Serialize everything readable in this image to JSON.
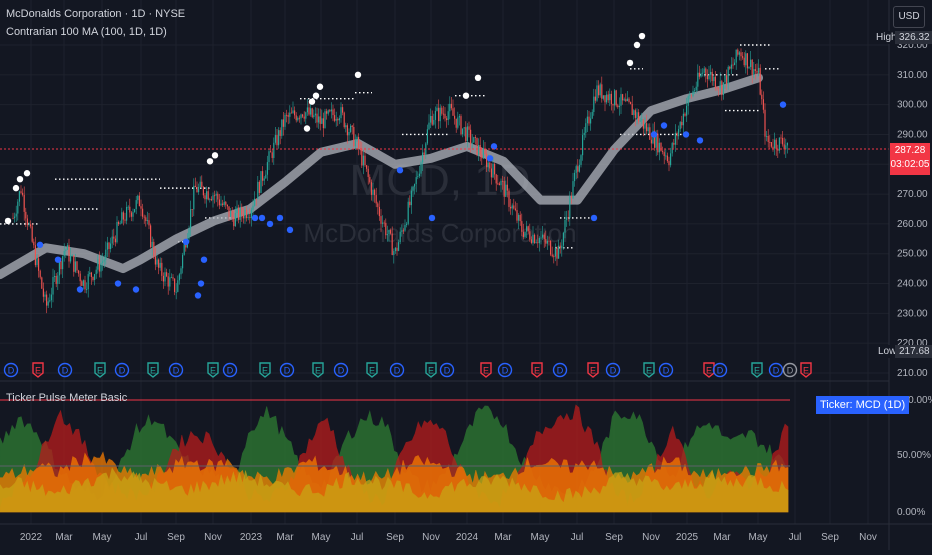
{
  "header": {
    "symbol_line": "McDonalds Corporation · 1D · NYSE",
    "indicator1": "Contrarian 100 MA (100, 1D, 1D)",
    "indicator2": "Ticker Pulse Meter Basic",
    "currency": "USD",
    "watermark_symbol": "MCD, 1D",
    "watermark_name": "McDonalds Corporation"
  },
  "tags": {
    "high_label": "High",
    "high_value": "326.32",
    "low_label": "Low",
    "low_value": "217.68",
    "last_price": "287.28",
    "countdown": "03:02:05",
    "ticker_badge": "Ticker: MCD (1D)"
  },
  "colors": {
    "background": "#131722",
    "grid": "#1e222d",
    "up": "#26a69a",
    "down": "#ef5350",
    "ma_band": "#b2b5be",
    "white_dot": "#ffffff",
    "blue_dot": "#2962ff",
    "price_line": "#f23645",
    "osc_green": "#2e7d32",
    "osc_red": "#b71c1c",
    "osc_orange": "#f57c00",
    "osc_yellow": "#c8a415",
    "badge": "#2962ff"
  },
  "chart_data": [
    {
      "type": "candlestick",
      "title": "McDonalds Corporation · 1D · NYSE",
      "x_ticks": [
        "2022",
        "Mar",
        "May",
        "Jul",
        "Sep",
        "Nov",
        "2023",
        "Mar",
        "May",
        "Jul",
        "Sep",
        "Nov",
        "2024",
        "Mar",
        "May",
        "Jul",
        "Sep",
        "Nov",
        "2025",
        "Mar",
        "May",
        "Jul",
        "Sep",
        "Nov"
      ],
      "y_ticks": [
        210,
        220,
        230,
        240,
        250,
        260,
        270,
        280,
        290,
        300,
        310,
        320
      ],
      "ylim": [
        207,
        330
      ],
      "price_path": [
        [
          "2022-01",
          262
        ],
        [
          "2022-01",
          272
        ],
        [
          "2022-02",
          258
        ],
        [
          "2022-03",
          232
        ],
        [
          "2022-04",
          252
        ],
        [
          "2022-05",
          240
        ],
        [
          "2022-06",
          248
        ],
        [
          "2022-07",
          262
        ],
        [
          "2022-08",
          268
        ],
        [
          "2022-09",
          245
        ],
        [
          "2022-10",
          238
        ],
        [
          "2022-11",
          272
        ],
        [
          "2022-12",
          270
        ],
        [
          "2023-01",
          262
        ],
        [
          "2023-02",
          265
        ],
        [
          "2023-03",
          280
        ],
        [
          "2023-04",
          295
        ],
        [
          "2023-05",
          298
        ],
        [
          "2023-06",
          294
        ],
        [
          "2023-07",
          298
        ],
        [
          "2023-08",
          286
        ],
        [
          "2023-09",
          266
        ],
        [
          "2023-10",
          250
        ],
        [
          "2023-11",
          270
        ],
        [
          "2023-12",
          296
        ],
        [
          "2024-01",
          298
        ],
        [
          "2024-02",
          290
        ],
        [
          "2024-03",
          282
        ],
        [
          "2024-04",
          272
        ],
        [
          "2024-05",
          258
        ],
        [
          "2024-06",
          255
        ],
        [
          "2024-07",
          250
        ],
        [
          "2024-08",
          280
        ],
        [
          "2024-09",
          305
        ],
        [
          "2024-10",
          302
        ],
        [
          "2024-11",
          298
        ],
        [
          "2025-01",
          282
        ],
        [
          "2025-02",
          300
        ],
        [
          "2025-03",
          312
        ],
        [
          "2025-04",
          306
        ],
        [
          "2025-05",
          318
        ],
        [
          "2025-06",
          310
        ],
        [
          "2025-06",
          287.28
        ]
      ],
      "ma_100": [
        [
          "2022-01",
          243
        ],
        [
          "2022-03",
          252
        ],
        [
          "2022-05",
          250
        ],
        [
          "2022-07",
          245
        ],
        [
          "2022-08",
          248
        ],
        [
          "2022-10",
          255
        ],
        [
          "2022-12",
          261
        ],
        [
          "2023-02",
          265
        ],
        [
          "2023-04",
          274
        ],
        [
          "2023-06",
          284
        ],
        [
          "2023-08",
          287
        ],
        [
          "2023-10",
          280
        ],
        [
          "2023-12",
          282
        ],
        [
          "2024-02",
          286
        ],
        [
          "2024-04",
          281
        ],
        [
          "2024-06",
          268
        ],
        [
          "2024-08",
          268
        ],
        [
          "2024-10",
          285
        ],
        [
          "2024-12",
          298
        ],
        [
          "2025-02",
          302
        ],
        [
          "2025-04",
          305
        ],
        [
          "2025-06",
          309
        ]
      ],
      "last_price": 287.28,
      "high": 326.32,
      "low": 217.68
    },
    {
      "type": "area",
      "title": "Ticker Pulse Meter Basic",
      "y_ticks": [
        "100.00%",
        "50.00%",
        "0.00%"
      ],
      "ylim": [
        0,
        100
      ],
      "series": [
        {
          "color_key": "osc_green",
          "values": [
            60,
            85,
            70,
            40,
            20,
            15,
            30,
            70,
            85,
            60,
            40,
            35,
            20,
            75,
            90,
            60,
            30,
            25,
            65,
            85,
            80,
            40,
            20,
            30,
            60,
            90,
            85,
            50,
            30,
            20,
            15,
            40,
            85,
            90,
            60,
            30,
            70,
            80,
            60,
            70,
            55,
            40
          ]
        },
        {
          "color_key": "osc_red",
          "values": [
            10,
            25,
            45,
            90,
            70,
            40,
            20,
            15,
            20,
            55,
            70,
            65,
            40,
            15,
            10,
            25,
            60,
            85,
            40,
            15,
            10,
            55,
            80,
            75,
            35,
            15,
            10,
            30,
            70,
            85,
            90,
            60,
            15,
            10,
            40,
            75,
            30,
            15,
            35,
            25,
            40,
            80
          ]
        },
        {
          "color_key": "osc_orange",
          "values": [
            30,
            35,
            40,
            35,
            45,
            50,
            40,
            30,
            35,
            40,
            45,
            40,
            45,
            30,
            30,
            35,
            45,
            40,
            35,
            30,
            30,
            40,
            45,
            40,
            35,
            30,
            30,
            40,
            45,
            40,
            40,
            45,
            30,
            30,
            40,
            45,
            35,
            30,
            40,
            35,
            40,
            40
          ]
        },
        {
          "color_key": "osc_yellow",
          "values": [
            20,
            25,
            20,
            15,
            25,
            30,
            35,
            30,
            25,
            20,
            20,
            25,
            30,
            30,
            25,
            20,
            20,
            20,
            30,
            30,
            25,
            20,
            15,
            20,
            25,
            25,
            30,
            25,
            20,
            15,
            15,
            20,
            30,
            30,
            25,
            20,
            25,
            30,
            25,
            30,
            25,
            20
          ]
        }
      ]
    }
  ]
}
